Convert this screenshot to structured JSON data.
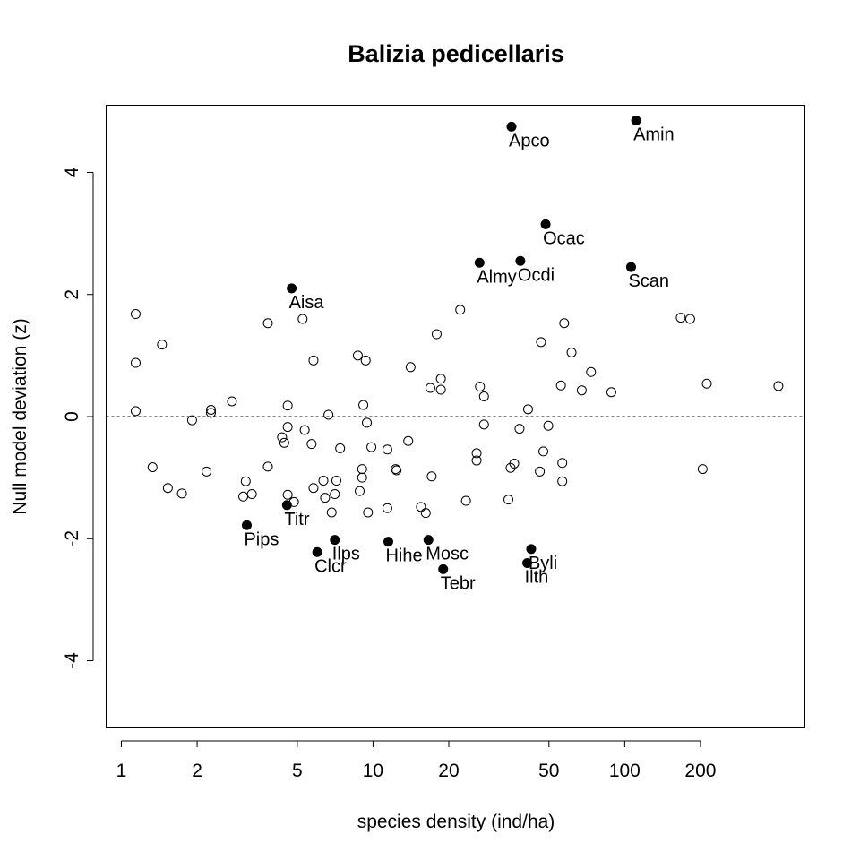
{
  "chart_data": {
    "type": "scatter",
    "title": "Balizia pedicellaris",
    "xlabel": "species density (ind/ha)",
    "ylabel": "Null model deviation (z)",
    "x_scale": "log",
    "xlim": [
      0.87,
      520
    ],
    "ylim": [
      -5.1,
      5.1
    ],
    "x_ticks": [
      1,
      2,
      5,
      10,
      20,
      50,
      100,
      200
    ],
    "y_ticks": [
      -4,
      -2,
      0,
      2,
      4
    ],
    "reference_line": {
      "y": 0,
      "style": "dashed"
    },
    "highlighted_points": [
      {
        "label": "Apco",
        "x": 35.5,
        "y": 4.75
      },
      {
        "label": "Amin",
        "x": 111,
        "y": 4.85
      },
      {
        "label": "Ocac",
        "x": 48.5,
        "y": 3.15
      },
      {
        "label": "Almy",
        "x": 26.5,
        "y": 2.52
      },
      {
        "label": "Ocdi",
        "x": 38.5,
        "y": 2.55
      },
      {
        "label": "Scan",
        "x": 106,
        "y": 2.45
      },
      {
        "label": "Aisa",
        "x": 4.75,
        "y": 2.1
      },
      {
        "label": "Titr",
        "x": 4.55,
        "y": -1.45
      },
      {
        "label": "Pips",
        "x": 3.15,
        "y": -1.78
      },
      {
        "label": "Ilps",
        "x": 7.05,
        "y": -2.02
      },
      {
        "label": "Clcr",
        "x": 6.0,
        "y": -2.22
      },
      {
        "label": "Hihe",
        "x": 11.5,
        "y": -2.05
      },
      {
        "label": "Mosc",
        "x": 16.6,
        "y": -2.02
      },
      {
        "label": "Tebr",
        "x": 19.0,
        "y": -2.5
      },
      {
        "label": "Byli",
        "x": 42.5,
        "y": -2.17
      },
      {
        "label": "Ilth",
        "x": 41.0,
        "y": -2.4
      }
    ],
    "other_points": [
      {
        "x": 1.14,
        "y": 1.68
      },
      {
        "x": 1.14,
        "y": 0.88
      },
      {
        "x": 1.14,
        "y": 0.09
      },
      {
        "x": 1.33,
        "y": -0.83
      },
      {
        "x": 1.45,
        "y": 1.18
      },
      {
        "x": 1.53,
        "y": -1.17
      },
      {
        "x": 1.74,
        "y": -1.26
      },
      {
        "x": 1.91,
        "y": -0.06
      },
      {
        "x": 2.18,
        "y": -0.9
      },
      {
        "x": 2.27,
        "y": 0.11
      },
      {
        "x": 2.27,
        "y": 0.06
      },
      {
        "x": 2.75,
        "y": 0.25
      },
      {
        "x": 3.05,
        "y": -1.31
      },
      {
        "x": 3.12,
        "y": -1.06
      },
      {
        "x": 3.3,
        "y": -1.27
      },
      {
        "x": 3.82,
        "y": 1.53
      },
      {
        "x": 3.82,
        "y": -0.82
      },
      {
        "x": 4.35,
        "y": -0.34
      },
      {
        "x": 4.44,
        "y": -0.43
      },
      {
        "x": 4.58,
        "y": 0.18
      },
      {
        "x": 4.58,
        "y": -0.17
      },
      {
        "x": 4.58,
        "y": -1.28
      },
      {
        "x": 4.85,
        "y": -1.4
      },
      {
        "x": 5.25,
        "y": 1.6
      },
      {
        "x": 5.35,
        "y": -0.22
      },
      {
        "x": 5.7,
        "y": -0.45
      },
      {
        "x": 5.8,
        "y": 0.92
      },
      {
        "x": 5.8,
        "y": -1.17
      },
      {
        "x": 6.35,
        "y": -1.05
      },
      {
        "x": 6.45,
        "y": -1.33
      },
      {
        "x": 6.65,
        "y": 0.03
      },
      {
        "x": 6.85,
        "y": -1.57
      },
      {
        "x": 7.05,
        "y": -1.27
      },
      {
        "x": 7.15,
        "y": -1.05
      },
      {
        "x": 7.4,
        "y": -0.52
      },
      {
        "x": 8.7,
        "y": 1.0
      },
      {
        "x": 8.85,
        "y": -1.22
      },
      {
        "x": 9.05,
        "y": -0.86
      },
      {
        "x": 9.05,
        "y": -1.0
      },
      {
        "x": 9.15,
        "y": 0.19
      },
      {
        "x": 9.35,
        "y": 0.92
      },
      {
        "x": 9.45,
        "y": -0.1
      },
      {
        "x": 9.55,
        "y": -1.57
      },
      {
        "x": 9.85,
        "y": -0.5
      },
      {
        "x": 11.4,
        "y": -0.54
      },
      {
        "x": 11.4,
        "y": -1.5
      },
      {
        "x": 12.3,
        "y": -0.86
      },
      {
        "x": 12.4,
        "y": -0.88
      },
      {
        "x": 13.8,
        "y": -0.4
      },
      {
        "x": 14.1,
        "y": 0.81
      },
      {
        "x": 15.5,
        "y": -1.48
      },
      {
        "x": 16.2,
        "y": -1.58
      },
      {
        "x": 16.9,
        "y": 0.47
      },
      {
        "x": 17.1,
        "y": -0.98
      },
      {
        "x": 17.9,
        "y": 1.35
      },
      {
        "x": 18.6,
        "y": 0.62
      },
      {
        "x": 18.6,
        "y": 0.44
      },
      {
        "x": 22.2,
        "y": 1.75
      },
      {
        "x": 23.4,
        "y": -1.38
      },
      {
        "x": 25.8,
        "y": -0.6
      },
      {
        "x": 25.8,
        "y": -0.72
      },
      {
        "x": 26.6,
        "y": 0.49
      },
      {
        "x": 27.6,
        "y": 0.33
      },
      {
        "x": 27.6,
        "y": -0.13
      },
      {
        "x": 34.5,
        "y": -1.36
      },
      {
        "x": 35.2,
        "y": -0.84
      },
      {
        "x": 36.4,
        "y": -0.77
      },
      {
        "x": 38.2,
        "y": -0.2
      },
      {
        "x": 41.3,
        "y": 0.12
      },
      {
        "x": 46.5,
        "y": 1.22
      },
      {
        "x": 46.0,
        "y": -0.9
      },
      {
        "x": 47.5,
        "y": -0.57
      },
      {
        "x": 49.7,
        "y": -0.15
      },
      {
        "x": 55.8,
        "y": 0.51
      },
      {
        "x": 56.5,
        "y": -0.76
      },
      {
        "x": 56.5,
        "y": -1.06
      },
      {
        "x": 57.5,
        "y": 1.53
      },
      {
        "x": 61.5,
        "y": 1.05
      },
      {
        "x": 67.5,
        "y": 0.43
      },
      {
        "x": 73.5,
        "y": 0.73
      },
      {
        "x": 88.5,
        "y": 0.4
      },
      {
        "x": 167,
        "y": 1.62
      },
      {
        "x": 182,
        "y": 1.6
      },
      {
        "x": 204,
        "y": -0.86
      },
      {
        "x": 212,
        "y": 0.54
      },
      {
        "x": 408,
        "y": 0.5
      }
    ]
  }
}
